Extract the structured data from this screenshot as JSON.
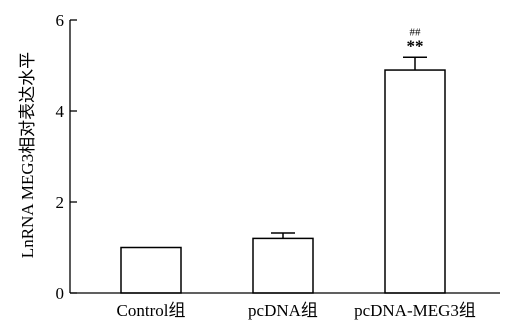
{
  "chart_data": {
    "type": "bar",
    "title": "",
    "xlabel": "",
    "ylabel": "LnRNA MEG3相对表达水平",
    "ylim": [
      0,
      6
    ],
    "yticks": [
      0,
      2,
      4,
      6
    ],
    "categories": [
      "Control组",
      "pcDNA组",
      "pcDNA-MEG3组"
    ],
    "values": [
      1.0,
      1.2,
      4.9
    ],
    "errors": [
      0,
      0.12,
      0.28
    ],
    "annotations": [
      {
        "category": "pcDNA-MEG3组",
        "marks": [
          "##",
          "**"
        ]
      }
    ],
    "grid": false,
    "bar_fill": "#ffffff",
    "bar_stroke": "#000000"
  }
}
